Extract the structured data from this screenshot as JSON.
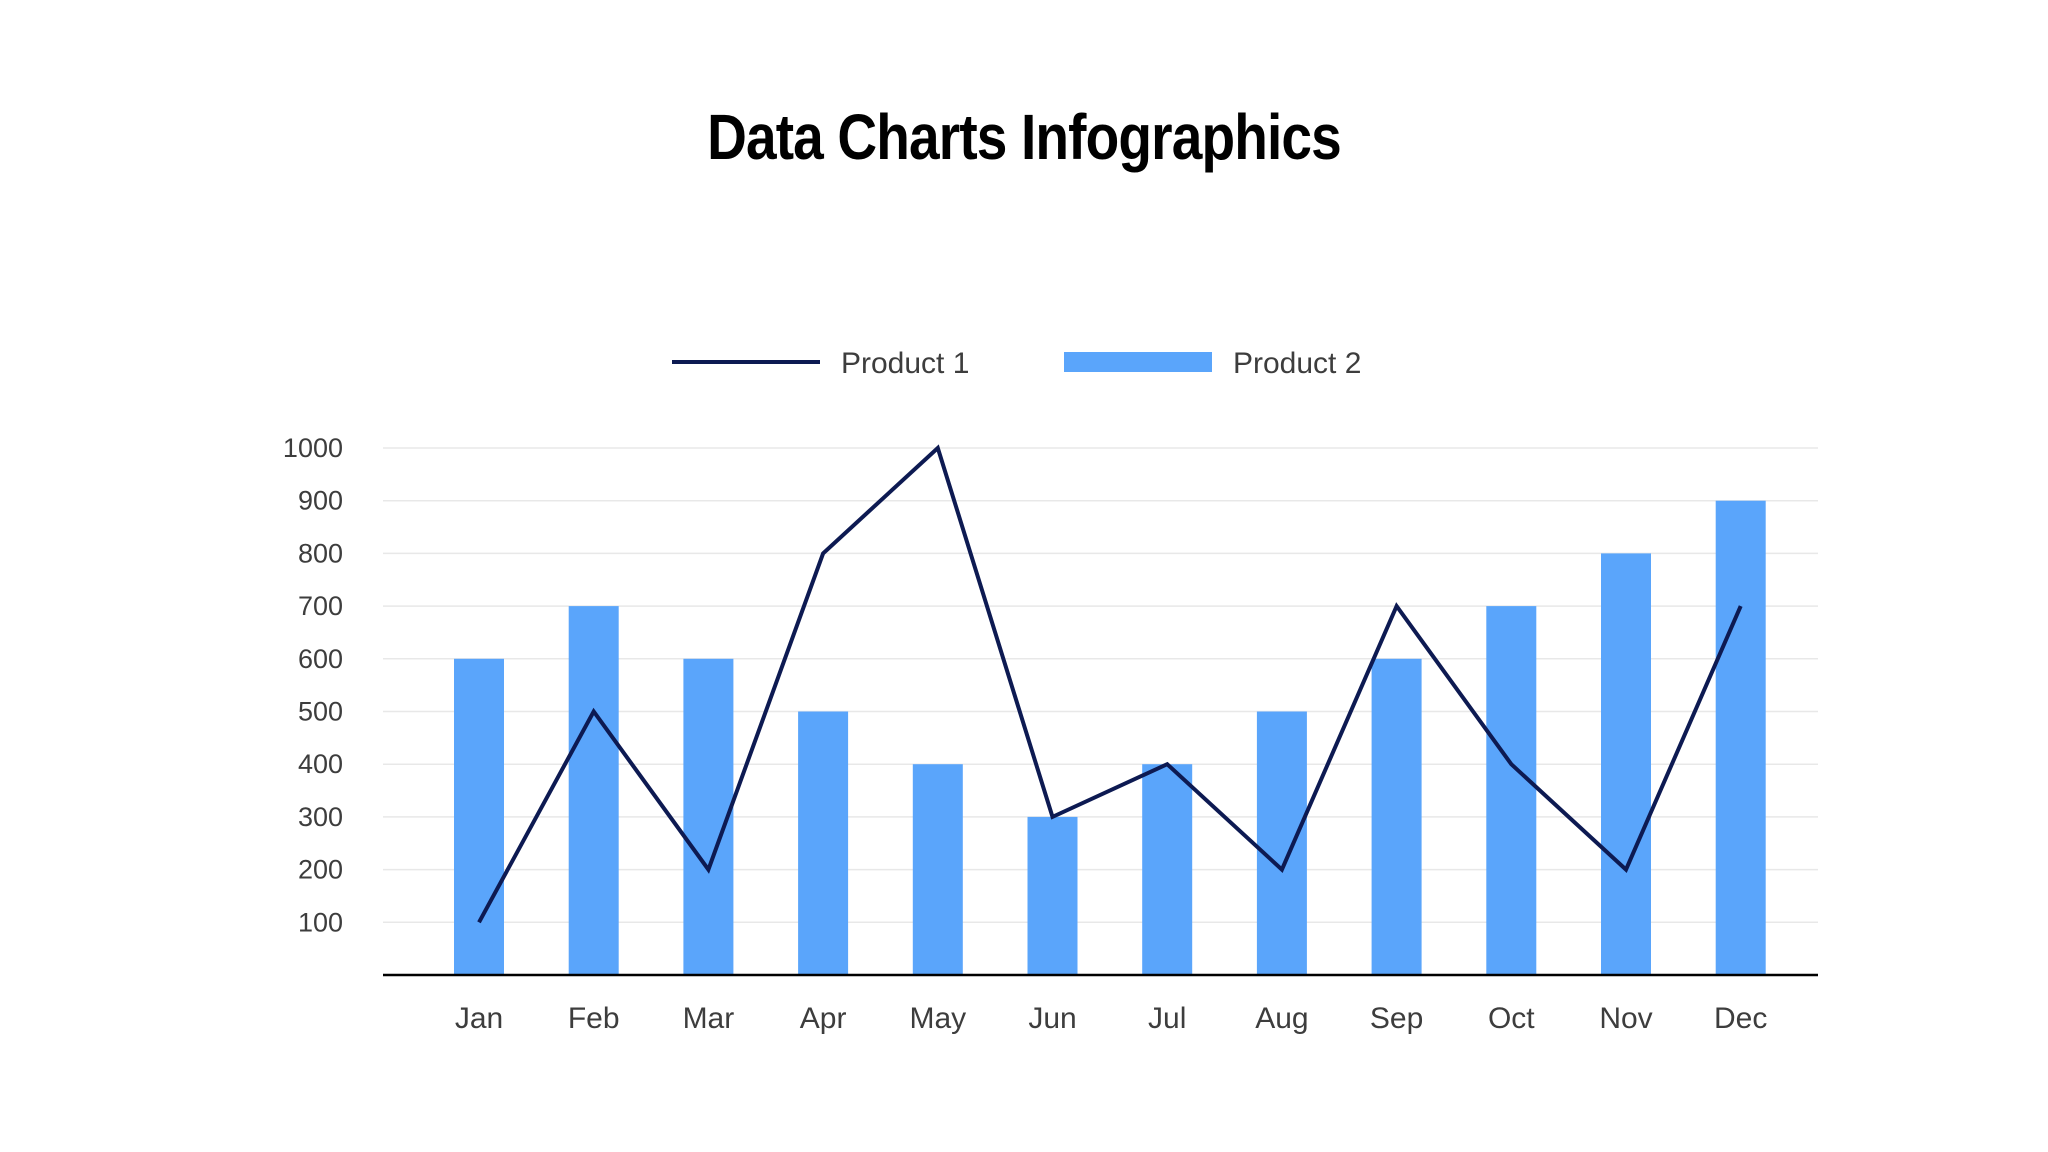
{
  "title": "Data Charts Infographics",
  "colors": {
    "line": "#0d1a52",
    "bar": "#5aa5fb",
    "grid": "#e8e8e8",
    "axis": "#000000",
    "text": "#3d3d3d"
  },
  "chart_data": {
    "type": "bar",
    "title": "",
    "xlabel": "",
    "ylabel": "",
    "categories": [
      "Jan",
      "Feb",
      "Mar",
      "Apr",
      "May",
      "Jun",
      "Jul",
      "Aug",
      "Sep",
      "Oct",
      "Nov",
      "Dec"
    ],
    "series": [
      {
        "name": "Product 1",
        "type": "line",
        "values": [
          100,
          500,
          200,
          800,
          1000,
          300,
          400,
          200,
          700,
          400,
          200,
          700
        ]
      },
      {
        "name": "Product 2",
        "type": "bar",
        "values": [
          600,
          700,
          600,
          500,
          400,
          300,
          400,
          500,
          600,
          700,
          800,
          900
        ]
      }
    ],
    "ylim": [
      0,
      1000
    ],
    "yticks": [
      100,
      200,
      300,
      400,
      500,
      600,
      700,
      800,
      900,
      1000
    ],
    "grid": true,
    "legend": "top"
  }
}
